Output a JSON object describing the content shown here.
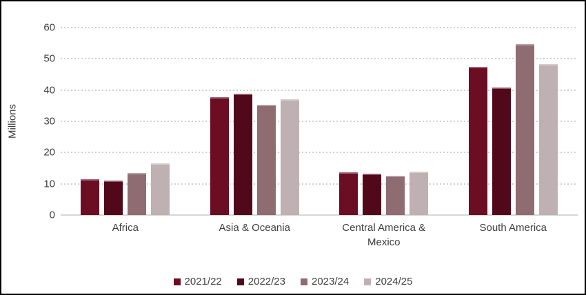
{
  "chart_data": {
    "type": "bar",
    "title": "",
    "ylabel": "Millions",
    "xlabel": "",
    "ylim": [
      0,
      60
    ],
    "yticks": [
      0,
      10,
      20,
      30,
      40,
      50,
      60
    ],
    "grid": "horizontal-dotted",
    "legend_position": "bottom",
    "categories": [
      "Africa",
      "Asia & Oceania",
      "Central America & Mexico",
      "South America"
    ],
    "series": [
      {
        "name": "2021/22",
        "color": "#6B0D23",
        "values": [
          11.4,
          37.7,
          13.6,
          47.5
        ]
      },
      {
        "name": "2022/23",
        "color": "#52081B",
        "values": [
          11.0,
          38.9,
          13.2,
          40.9
        ]
      },
      {
        "name": "2023/24",
        "color": "#8F6C72",
        "values": [
          13.5,
          35.4,
          12.5,
          54.8
        ]
      },
      {
        "name": "2024/25",
        "color": "#BFB1B3",
        "values": [
          16.6,
          37.1,
          13.9,
          48.3
        ]
      }
    ]
  },
  "colors": {
    "text": "#3f3f3f",
    "gridline": "#d0d0d0",
    "axis_line": "#d6d6d6",
    "background": "#ffffff",
    "border": "#000000"
  }
}
